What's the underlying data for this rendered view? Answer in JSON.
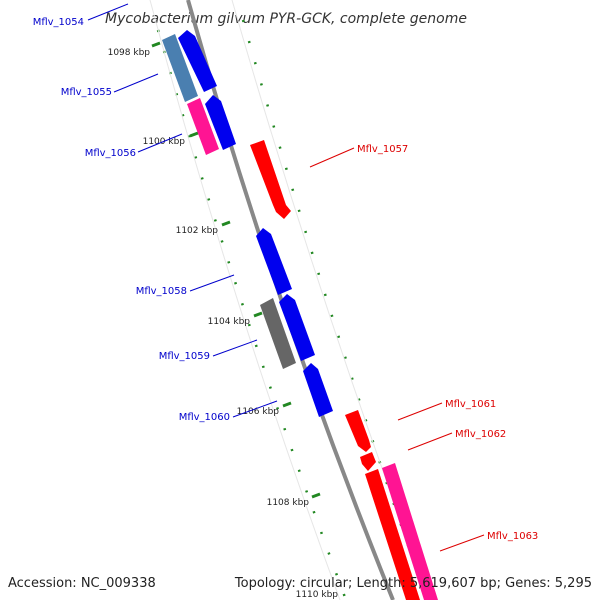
{
  "title": "Mycobacterium gilvum PYR-GCK, complete genome",
  "footer": {
    "accession": "Accession: NC_009338",
    "topology": "Topology: circular; Length: 5,619,607 bp; Genes: 5,295"
  },
  "ticks": [
    "1098 kbp",
    "1100 kbp",
    "1102 kbp",
    "1104 kbp",
    "1106 kbp",
    "1108 kbp",
    "1110 kbp"
  ],
  "colors": {
    "minus_strand_label": "#0000cc",
    "plus_strand_label": "#dd0000",
    "backbone": "#888888",
    "dotted_guide": "#228822",
    "gene_blue": "#0000ee",
    "gene_steelblue": "#4a7fb0",
    "gene_pink": "#ff1493",
    "gene_gray": "#666666",
    "gene_red": "#ff0000"
  },
  "genes": [
    {
      "label": "Mflv_1054",
      "strand": "minus",
      "color": "gene_steelblue"
    },
    {
      "label": "Mflv_1055",
      "strand": "minus",
      "color": "gene_blue"
    },
    {
      "label": "Mflv_1056",
      "strand": "minus",
      "color": "gene_pink"
    },
    {
      "label": "Mflv_1057",
      "strand": "plus",
      "color": "gene_red"
    },
    {
      "label": "Mflv_1058",
      "strand": "minus",
      "color": "gene_blue"
    },
    {
      "label": "Mflv_1059",
      "strand": "minus",
      "color": "gene_gray"
    },
    {
      "label": "Mflv_1060",
      "strand": "minus",
      "color": "gene_blue"
    },
    {
      "label": "Mflv_1061",
      "strand": "plus",
      "color": "gene_red"
    },
    {
      "label": "Mflv_1062",
      "strand": "plus",
      "color": "gene_red"
    },
    {
      "label": "Mflv_1063",
      "strand": "plus",
      "color": "gene_pink"
    }
  ]
}
